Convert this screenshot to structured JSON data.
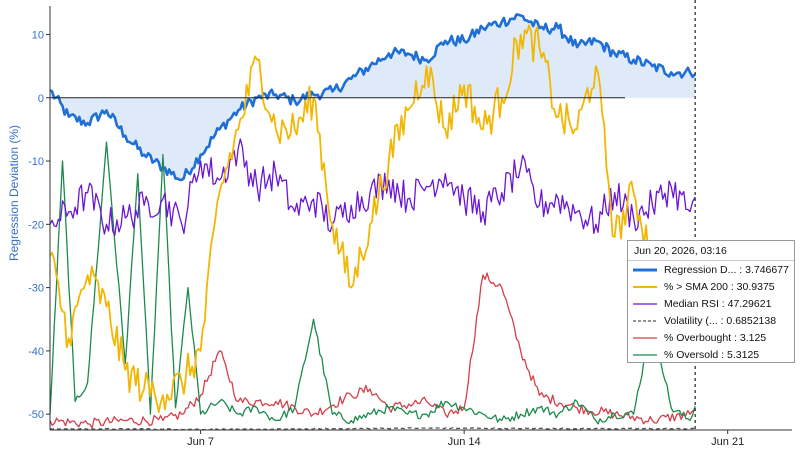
{
  "chart_data": {
    "type": "line",
    "ylabel": "Regression Deviation (%)",
    "ylim": [
      -52.5,
      14.5
    ],
    "yticks": [
      10,
      0,
      -10,
      -20,
      -30,
      -40,
      -50
    ],
    "ytick_labels": [
      "10",
      "0",
      "-10",
      "-20",
      "-30",
      "-40",
      "-50"
    ],
    "x_range": [
      "2026-06-03",
      "2026-06-22T17:00"
    ],
    "xticks": [
      {
        "date": "2026-06-07",
        "label": "Jun 7"
      },
      {
        "date": "2026-06-14",
        "label": "Jun 14"
      },
      {
        "date": "2026-06-21",
        "label": "Jun 21"
      }
    ],
    "cursor_date": "2026-06-20T03:16",
    "grid": false,
    "series": [
      {
        "name": "Regression D...",
        "key": "regression",
        "color": "#1f6fd6",
        "fill": "#dbe8f8",
        "x": [
          "2026-06-03",
          "2026-06-03T12:00",
          "2026-06-04",
          "2026-06-04T12:00",
          "2026-06-05",
          "2026-06-05T12:00",
          "2026-06-06",
          "2026-06-06T12:00",
          "2026-06-07",
          "2026-06-07T12:00",
          "2026-06-08",
          "2026-06-08T12:00",
          "2026-06-09",
          "2026-06-09T12:00",
          "2026-06-10",
          "2026-06-10T12:00",
          "2026-06-11",
          "2026-06-11T12:00",
          "2026-06-12",
          "2026-06-12T12:00",
          "2026-06-13",
          "2026-06-13T12:00",
          "2026-06-14",
          "2026-06-14T12:00",
          "2026-06-15",
          "2026-06-15T12:00",
          "2026-06-16",
          "2026-06-16T12:00",
          "2026-06-17",
          "2026-06-17T12:00",
          "2026-06-18",
          "2026-06-18T12:00",
          "2026-06-19",
          "2026-06-19T12:00",
          "2026-06-20",
          "2026-06-20T03:16"
        ],
        "values": [
          1.2,
          -3,
          -4,
          -2,
          -6,
          -9,
          -11,
          -13,
          -9,
          -5,
          -2,
          0,
          0.5,
          -0.5,
          0.5,
          1,
          3,
          5,
          7,
          7,
          6,
          9,
          9,
          11,
          12,
          13,
          11,
          11,
          8,
          9,
          7,
          6,
          5,
          4,
          4,
          3.746677
        ]
      },
      {
        "name": "% > SMA 200",
        "key": "sma200",
        "color": "#f2b705",
        "x": [
          "2026-06-03",
          "2026-06-03T12:00",
          "2026-06-04",
          "2026-06-04T12:00",
          "2026-06-05",
          "2026-06-05T12:00",
          "2026-06-06",
          "2026-06-06T12:00",
          "2026-06-07",
          "2026-06-07T12:00",
          "2026-06-08",
          "2026-06-08T12:00",
          "2026-06-09",
          "2026-06-09T12:00",
          "2026-06-10",
          "2026-06-10T12:00",
          "2026-06-11",
          "2026-06-11T12:00",
          "2026-06-12",
          "2026-06-12T12:00",
          "2026-06-13",
          "2026-06-13T12:00",
          "2026-06-14",
          "2026-06-14T12:00",
          "2026-06-15",
          "2026-06-15T12:00",
          "2026-06-16",
          "2026-06-16T12:00",
          "2026-06-17",
          "2026-06-17T12:00",
          "2026-06-18",
          "2026-06-18T12:00",
          "2026-06-19",
          "2026-06-19T12:00",
          "2026-06-20",
          "2026-06-20T03:16"
        ],
        "values": [
          -25,
          -38,
          -28,
          -33,
          -43,
          -46,
          -47,
          -45,
          -40,
          -15,
          -5,
          6,
          -5,
          -5,
          0,
          -20,
          -30,
          -20,
          -10,
          -2,
          5,
          -5,
          2,
          -5,
          0,
          10,
          8,
          -3,
          -5,
          5,
          -22,
          -15,
          -25,
          -30,
          -33,
          -30.9375
        ]
      },
      {
        "name": "Median RSI",
        "key": "rsi",
        "color": "#6a17d4",
        "x": [
          "2026-06-03",
          "2026-06-03T12:00",
          "2026-06-04",
          "2026-06-04T12:00",
          "2026-06-05",
          "2026-06-05T12:00",
          "2026-06-06",
          "2026-06-06T12:00",
          "2026-06-07",
          "2026-06-07T12:00",
          "2026-06-08",
          "2026-06-08T12:00",
          "2026-06-09",
          "2026-06-09T12:00",
          "2026-06-10",
          "2026-06-10T12:00",
          "2026-06-11",
          "2026-06-11T12:00",
          "2026-06-12",
          "2026-06-12T12:00",
          "2026-06-13",
          "2026-06-13T12:00",
          "2026-06-14",
          "2026-06-14T12:00",
          "2026-06-15",
          "2026-06-15T12:00",
          "2026-06-16",
          "2026-06-16T12:00",
          "2026-06-17",
          "2026-06-17T12:00",
          "2026-06-18",
          "2026-06-18T12:00",
          "2026-06-19",
          "2026-06-19T12:00",
          "2026-06-20",
          "2026-06-20T03:16"
        ],
        "values": [
          -20,
          -18,
          -15,
          -20,
          -19,
          -17,
          -16,
          -20,
          -10,
          -13,
          -8,
          -14,
          -12,
          -18,
          -16,
          -20,
          -17,
          -15,
          -13,
          -16,
          -14,
          -12,
          -16,
          -18,
          -15,
          -11,
          -17,
          -16,
          -18,
          -20,
          -15,
          -19,
          -17,
          -14,
          -18,
          -15.7
        ]
      },
      {
        "name": "Volatility (...",
        "key": "volatility",
        "color": "#555555",
        "dash": true,
        "x": [
          "2026-06-03",
          "2026-06-08",
          "2026-06-13",
          "2026-06-18",
          "2026-06-20T03:16"
        ],
        "values": [
          -52.3,
          -52.4,
          -52.2,
          -52.3,
          -52.3
        ]
      },
      {
        "name": "% Overbought",
        "key": "overbought",
        "color": "#d33f4a",
        "x": [
          "2026-06-03",
          "2026-06-04",
          "2026-06-05",
          "2026-06-06",
          "2026-06-06T12:00",
          "2026-06-07",
          "2026-06-07T12:00",
          "2026-06-08",
          "2026-06-09",
          "2026-06-10",
          "2026-06-11",
          "2026-06-11T12:00",
          "2026-06-12",
          "2026-06-13",
          "2026-06-13T12:00",
          "2026-06-14",
          "2026-06-14T12:00",
          "2026-06-15",
          "2026-06-15T12:00",
          "2026-06-16",
          "2026-06-17",
          "2026-06-18",
          "2026-06-19",
          "2026-06-20",
          "2026-06-20T03:16"
        ],
        "values": [
          -51,
          -51.5,
          -51,
          -51,
          -50,
          -47,
          -40,
          -48,
          -48,
          -50,
          -47,
          -46,
          -49,
          -48,
          -50,
          -49,
          -28,
          -30,
          -40,
          -47,
          -49,
          -50,
          -51,
          -50,
          -49.3
        ]
      },
      {
        "name": "% Oversold",
        "key": "oversold",
        "color": "#1c8a4e",
        "x": [
          "2026-06-03",
          "2026-06-03T08:00",
          "2026-06-03T16:00",
          "2026-06-04",
          "2026-06-04T12:00",
          "2026-06-05",
          "2026-06-05T08:00",
          "2026-06-05T16:00",
          "2026-06-06",
          "2026-06-06T08:00",
          "2026-06-06T16:00",
          "2026-06-07",
          "2026-06-07T12:00",
          "2026-06-08",
          "2026-06-08T12:00",
          "2026-06-09",
          "2026-06-09T12:00",
          "2026-06-10",
          "2026-06-10T12:00",
          "2026-06-11",
          "2026-06-11T12:00",
          "2026-06-12",
          "2026-06-12T12:00",
          "2026-06-13",
          "2026-06-13T12:00",
          "2026-06-14",
          "2026-06-14T12:00",
          "2026-06-15",
          "2026-06-15T12:00",
          "2026-06-16",
          "2026-06-16T12:00",
          "2026-06-17",
          "2026-06-17T12:00",
          "2026-06-18",
          "2026-06-18T12:00",
          "2026-06-19",
          "2026-06-19T12:00",
          "2026-06-20",
          "2026-06-20T03:16"
        ],
        "values": [
          -50,
          -10,
          -48,
          -45,
          -7,
          -42,
          -12,
          -50,
          -9,
          -49,
          -30,
          -50,
          -48,
          -50,
          -49,
          -51,
          -49,
          -35,
          -50,
          -51,
          -50,
          -49,
          -50,
          -50,
          -48,
          -49,
          -50,
          -51,
          -50,
          -49,
          -50,
          -48,
          -51,
          -50,
          -50,
          -35,
          -49,
          -51,
          -48.7
        ]
      }
    ],
    "tooltip": {
      "header": "Jun 20, 2026, 03:16",
      "rows": [
        {
          "key": "regression",
          "label": "Regression D... : 3.746677"
        },
        {
          "key": "sma200",
          "label": "% > SMA 200 : 30.9375"
        },
        {
          "key": "rsi",
          "label": "Median RSI : 47.29621"
        },
        {
          "key": "volatility",
          "label": "Volatility (... : 0.6852138"
        },
        {
          "key": "overbought",
          "label": "% Overbought : 3.125"
        },
        {
          "key": "oversold",
          "label": "% Oversold : 5.3125"
        }
      ]
    }
  }
}
